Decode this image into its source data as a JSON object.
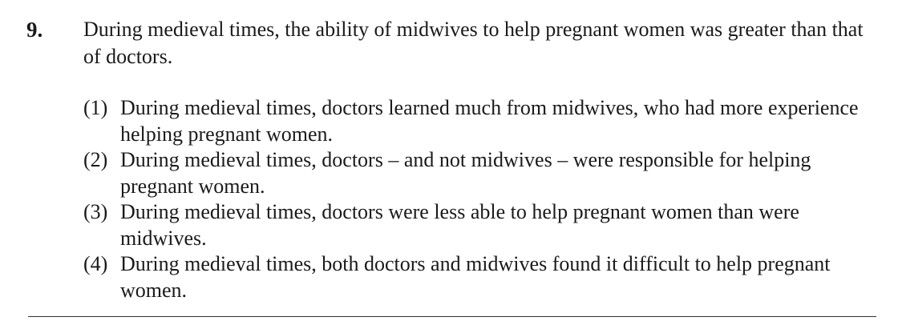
{
  "question": {
    "number": "9.",
    "stem": "During medieval times, the ability of midwives to help pregnant women was greater than that of doctors."
  },
  "options": [
    {
      "num": "(1)",
      "text": "During medieval times, doctors learned much from midwives, who had more experience helping pregnant women."
    },
    {
      "num": "(2)",
      "text": "During medieval times, doctors – and not midwives – were responsible for helping pregnant women."
    },
    {
      "num": "(3)",
      "text": "During medieval times, doctors were less able to help pregnant women than were midwives."
    },
    {
      "num": "(4)",
      "text": "During medieval times, both doctors and midwives found it difficult to help pregnant women."
    }
  ]
}
